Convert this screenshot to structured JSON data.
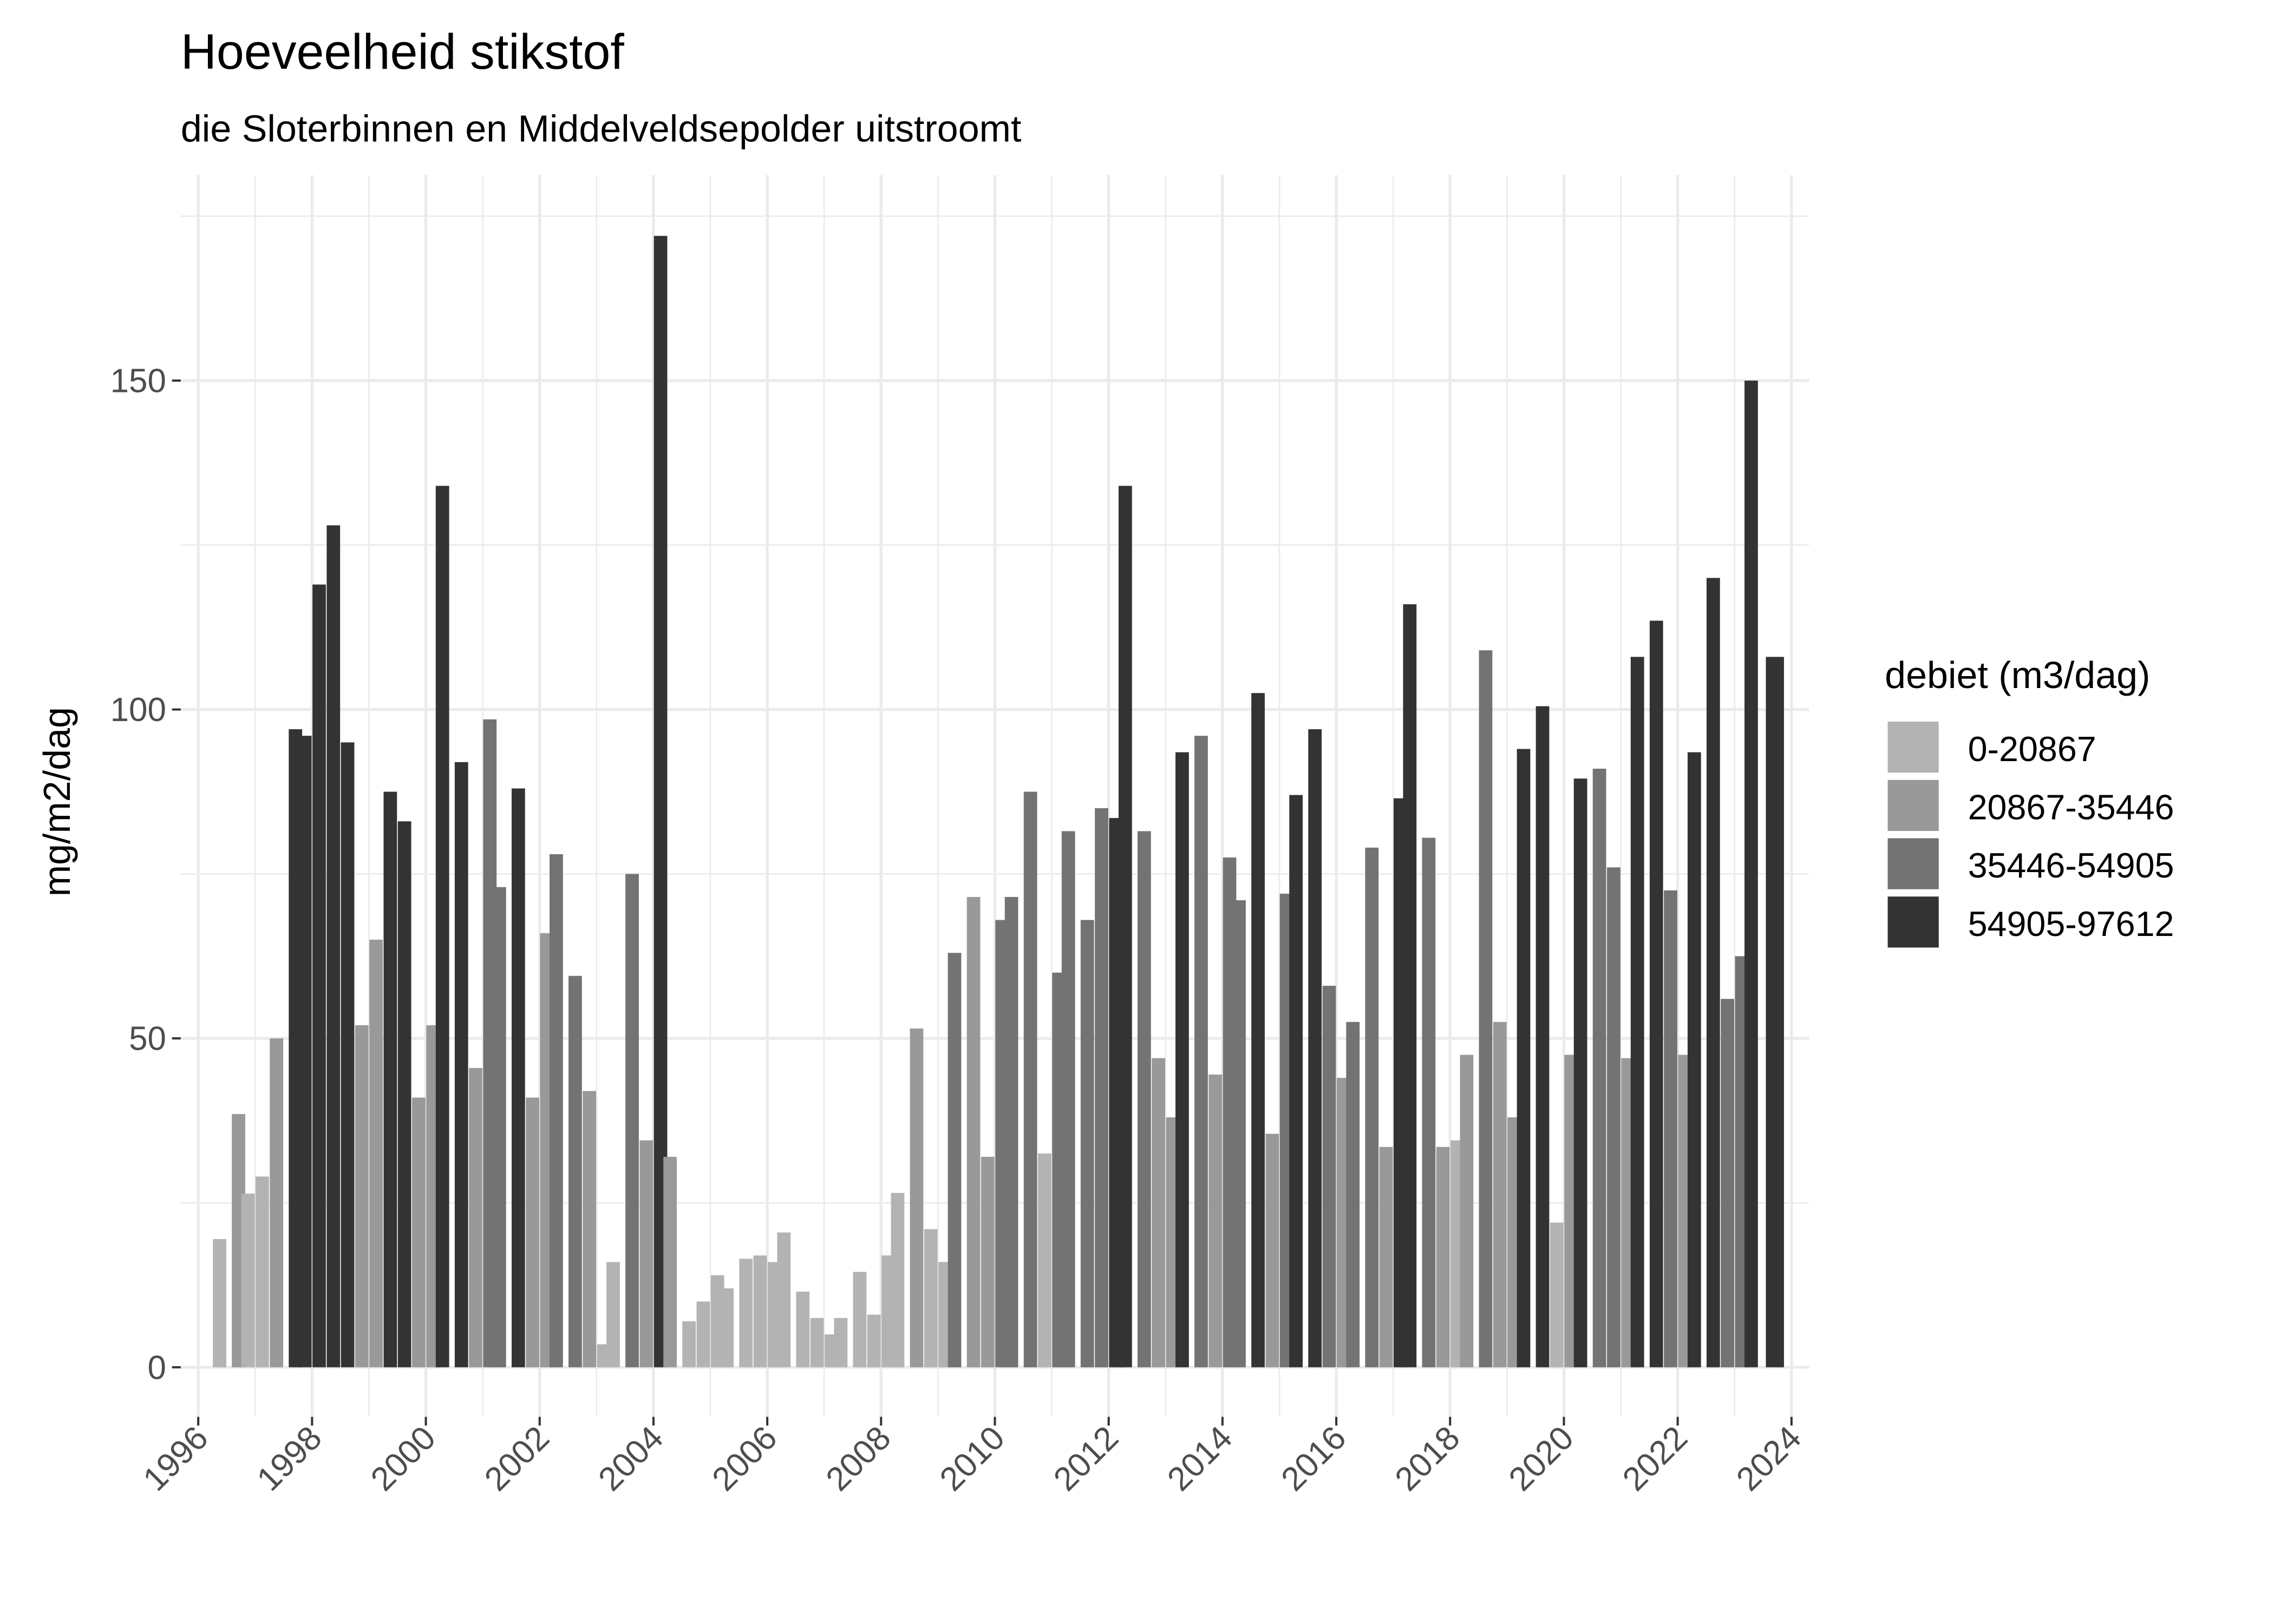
{
  "chart_data": {
    "type": "bar",
    "title": "Hoeveelheid stikstof",
    "subtitle": "die Sloterbinnen en Middelveldsepolder uitstroomt",
    "xlabel": "",
    "ylabel": "mg/m2/dag",
    "xlim": [
      1996,
      2024
    ],
    "ylim": [
      0,
      175
    ],
    "x_ticks": [
      "1996",
      "1998",
      "2000",
      "2002",
      "2004",
      "2006",
      "2008",
      "2010",
      "2012",
      "2014",
      "2016",
      "2018",
      "2020",
      "2022",
      "2024"
    ],
    "y_ticks": [
      0,
      50,
      100,
      150
    ],
    "grid": true,
    "legend": {
      "title": "debiet (m3/dag)",
      "placement": "right",
      "entries": [
        {
          "label": "0-20867",
          "color": "#B3B3B3"
        },
        {
          "label": "20867-35446",
          "color": "#999999"
        },
        {
          "label": "35446-54905",
          "color": "#737373"
        },
        {
          "label": "54905-97612",
          "color": "#333333"
        }
      ]
    },
    "bars_fields": [
      "date",
      "value",
      "class"
    ],
    "bars": [
      [
        "1996-05",
        19.5,
        0
      ],
      [
        "1996-09",
        38.5,
        1
      ],
      [
        "1996-11",
        26.4,
        0
      ],
      [
        "1997-02",
        29,
        0
      ],
      [
        "1997-05",
        50,
        1
      ],
      [
        "1997-09",
        97,
        3
      ],
      [
        "1997-11",
        96,
        3
      ],
      [
        "1998-02",
        119,
        3
      ],
      [
        "1998-05",
        128,
        3
      ],
      [
        "1998-08",
        95,
        3
      ],
      [
        "1998-11",
        52,
        1
      ],
      [
        "1999-02",
        65,
        1
      ],
      [
        "1999-05",
        87.5,
        3
      ],
      [
        "1999-08",
        83,
        3
      ],
      [
        "1999-11",
        41,
        1
      ],
      [
        "2000-02",
        52,
        1
      ],
      [
        "2000-04",
        134,
        3
      ],
      [
        "2000-08",
        92,
        3
      ],
      [
        "2000-11",
        45.5,
        1
      ],
      [
        "2001-02",
        98.5,
        2
      ],
      [
        "2001-04",
        73,
        2
      ],
      [
        "2001-08",
        88,
        3
      ],
      [
        "2001-11",
        41,
        1
      ],
      [
        "2002-02",
        66,
        1
      ],
      [
        "2002-04",
        78,
        2
      ],
      [
        "2002-08",
        59.5,
        2
      ],
      [
        "2002-11",
        42,
        1
      ],
      [
        "2003-02",
        3.5,
        0
      ],
      [
        "2003-04",
        16,
        0
      ],
      [
        "2003-08",
        75,
        2
      ],
      [
        "2003-11",
        34.5,
        1
      ],
      [
        "2004-02",
        172,
        3
      ],
      [
        "2004-04",
        32,
        1
      ],
      [
        "2004-08",
        7,
        0
      ],
      [
        "2004-11",
        10,
        0
      ],
      [
        "2005-02",
        14,
        0
      ],
      [
        "2005-04",
        12,
        0
      ],
      [
        "2005-08",
        16.5,
        0
      ],
      [
        "2005-11",
        17,
        0
      ],
      [
        "2006-02",
        16,
        0
      ],
      [
        "2006-04",
        20.5,
        0
      ],
      [
        "2006-08",
        11.5,
        0
      ],
      [
        "2006-11",
        7.5,
        0
      ],
      [
        "2007-02",
        5,
        0
      ],
      [
        "2007-04",
        7.5,
        0
      ],
      [
        "2007-08",
        14.5,
        0
      ],
      [
        "2007-11",
        8,
        0
      ],
      [
        "2008-02",
        17,
        0
      ],
      [
        "2008-04",
        26.5,
        0
      ],
      [
        "2008-08",
        51.5,
        1
      ],
      [
        "2008-11",
        21,
        0
      ],
      [
        "2009-02",
        16,
        0
      ],
      [
        "2009-04",
        63,
        2
      ],
      [
        "2009-08",
        71.5,
        1
      ],
      [
        "2009-11",
        32,
        1
      ],
      [
        "2010-02",
        68,
        2
      ],
      [
        "2010-04",
        71.5,
        2
      ],
      [
        "2010-08",
        87.5,
        2
      ],
      [
        "2010-11",
        32.5,
        0
      ],
      [
        "2011-02",
        60,
        2
      ],
      [
        "2011-04",
        81.5,
        2
      ],
      [
        "2011-08",
        68,
        2
      ],
      [
        "2011-11",
        85,
        2
      ],
      [
        "2012-02",
        83.5,
        3
      ],
      [
        "2012-04",
        134,
        3
      ],
      [
        "2012-08",
        81.5,
        2
      ],
      [
        "2012-11",
        47,
        1
      ],
      [
        "2013-02",
        38,
        1
      ],
      [
        "2013-04",
        93.5,
        3
      ],
      [
        "2013-08",
        96,
        2
      ],
      [
        "2013-11",
        44.5,
        1
      ],
      [
        "2014-02",
        77.5,
        2
      ],
      [
        "2014-04",
        71,
        2
      ],
      [
        "2014-08",
        102.5,
        3
      ],
      [
        "2014-11",
        35.5,
        1
      ],
      [
        "2015-02",
        72,
        2
      ],
      [
        "2015-04",
        87,
        3
      ],
      [
        "2015-08",
        97,
        3
      ],
      [
        "2015-11",
        58,
        2
      ],
      [
        "2016-02",
        44,
        1
      ],
      [
        "2016-04",
        52.5,
        2
      ],
      [
        "2016-08",
        79,
        2
      ],
      [
        "2016-11",
        33.5,
        1
      ],
      [
        "2017-02",
        86.5,
        3
      ],
      [
        "2017-04",
        116,
        3
      ],
      [
        "2017-08",
        80.5,
        2
      ],
      [
        "2017-11",
        33.5,
        1
      ],
      [
        "2018-02",
        34.5,
        0
      ],
      [
        "2018-04",
        47.5,
        1
      ],
      [
        "2018-08",
        109,
        2
      ],
      [
        "2018-11",
        52.5,
        1
      ],
      [
        "2019-02",
        38,
        1
      ],
      [
        "2019-04",
        94,
        3
      ],
      [
        "2019-08",
        100.5,
        3
      ],
      [
        "2019-11",
        22,
        0
      ],
      [
        "2020-02",
        47.5,
        1
      ],
      [
        "2020-04",
        89.5,
        3
      ],
      [
        "2020-08",
        91,
        2
      ],
      [
        "2020-11",
        76,
        2
      ],
      [
        "2021-02",
        47,
        1
      ],
      [
        "2021-04",
        108,
        3
      ],
      [
        "2021-08",
        113.5,
        3
      ],
      [
        "2021-11",
        72.5,
        2
      ],
      [
        "2022-02",
        47.5,
        1
      ],
      [
        "2022-04",
        93.5,
        3
      ],
      [
        "2022-08",
        120,
        3
      ],
      [
        "2022-11",
        56,
        2
      ],
      [
        "2023-02",
        62.5,
        2
      ],
      [
        "2023-04",
        150,
        3
      ],
      [
        "2023-09",
        108,
        3
      ]
    ]
  }
}
